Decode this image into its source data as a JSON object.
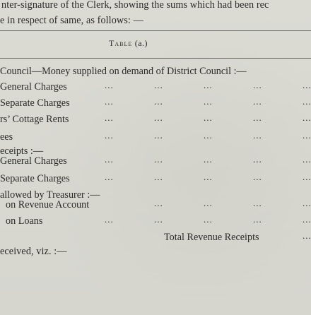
{
  "header": {
    "line1": "nter-signature of the Clerk, showing the sums which had been rec",
    "line2": "e in respect of same, as follows: —"
  },
  "table_caption": {
    "word": "Table",
    "suffix": "(a.)"
  },
  "rows": [
    {
      "label": "Council—Money supplied on demand of District Council :—",
      "dots": false
    },
    {
      "label": "General Charges",
      "dots": true
    },
    {
      "label": "Separate Charges",
      "dots": true
    },
    {
      "label": "rs’ Cottage Rents",
      "dots": true
    },
    {
      "label": "ees",
      "dots": true
    },
    {
      "label": "eceipts :—",
      "dots": false
    },
    {
      "label": "General Charges",
      "dots": true
    },
    {
      "label": "Separate Charges",
      "dots": true
    },
    {
      "label": "allowed by Treasurer :—",
      "dots": false
    },
    {
      "label": "on Revenue Account",
      "dots": true
    },
    {
      "label": "on Loans",
      "dots": true
    }
  ],
  "total": {
    "label": "Total Revenue Receipts",
    "dots": "..."
  },
  "footer": {
    "line": "eceived, viz. :—"
  },
  "dots_glyph": "..."
}
